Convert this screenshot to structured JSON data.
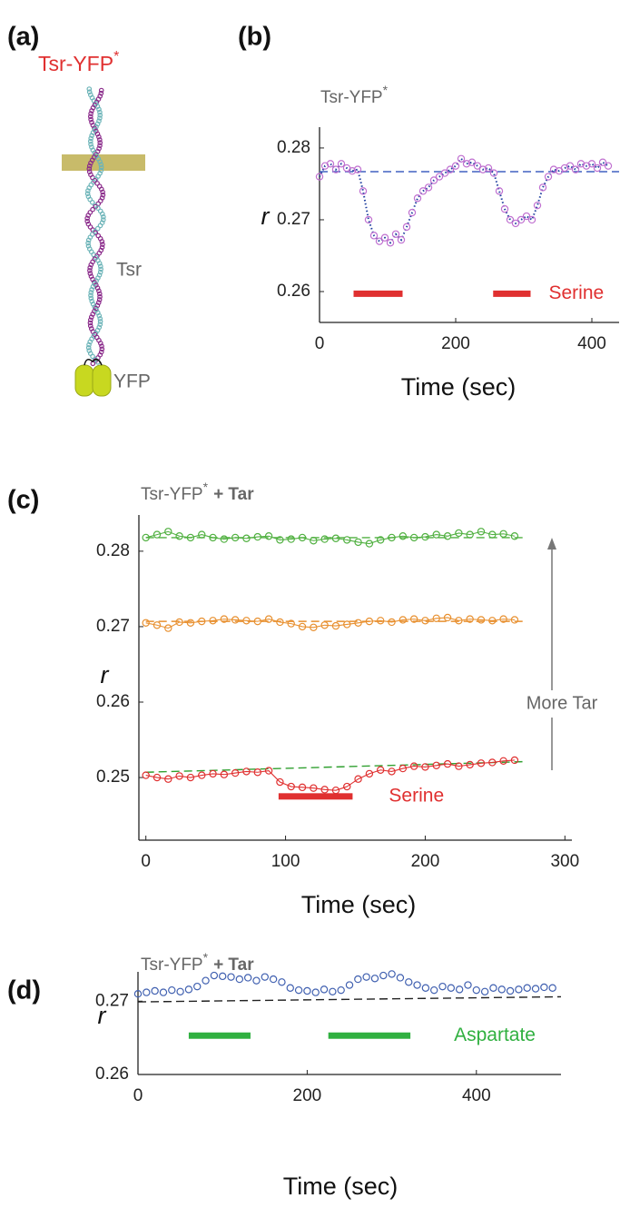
{
  "diagram": {
    "panel_label": "(a)",
    "title": "Tsr-YFP",
    "title_sup": "*",
    "labels": [
      "Tsr",
      "YFP"
    ]
  },
  "chart_data": [
    {
      "type": "scatter",
      "panel_label": "(b)",
      "title": "Tsr-YFP",
      "title_sup": "*",
      "x_label": "Time (sec)",
      "y_label": "r",
      "xlim": [
        0,
        440
      ],
      "ylim": [
        0.2557,
        0.2829
      ],
      "xticks": [
        0,
        200,
        400
      ],
      "yticks": [
        0.26,
        0.27,
        0.28
      ],
      "x": [
        0,
        8,
        16,
        24,
        32,
        40,
        48,
        56,
        64,
        72,
        80,
        88,
        96,
        104,
        112,
        120,
        128,
        136,
        144,
        152,
        160,
        168,
        176,
        184,
        192,
        200,
        208,
        216,
        224,
        232,
        240,
        248,
        256,
        264,
        272,
        280,
        288,
        296,
        304,
        312,
        320,
        328,
        336,
        344,
        352,
        360,
        368,
        376,
        384,
        392,
        400,
        408,
        416,
        424
      ],
      "series": [
        {
          "color": "#c070d0",
          "line_color": "#2040a0",
          "line_style": "dotted",
          "values": [
            0.276,
            0.2775,
            0.2778,
            0.277,
            0.2778,
            0.2772,
            0.2768,
            0.277,
            0.274,
            0.27,
            0.2678,
            0.267,
            0.2675,
            0.2668,
            0.268,
            0.2672,
            0.269,
            0.271,
            0.273,
            0.274,
            0.2745,
            0.2755,
            0.276,
            0.2765,
            0.277,
            0.2775,
            0.2785,
            0.2778,
            0.278,
            0.2775,
            0.277,
            0.2772,
            0.2765,
            0.274,
            0.2715,
            0.27,
            0.2695,
            0.27,
            0.2705,
            0.27,
            0.272,
            0.2745,
            0.276,
            0.277,
            0.2768,
            0.2772,
            0.2775,
            0.277,
            0.2778,
            0.2775,
            0.2778,
            0.2772,
            0.278,
            0.2775
          ],
          "baseline": [
            0.2767,
            0.2767
          ],
          "baseline_color": "#4060c0"
        }
      ],
      "baseline_x": [
        0,
        440
      ],
      "stimuli": [
        {
          "x": [
            50,
            122
          ],
          "y": 0.2597
        },
        {
          "x": [
            255,
            310
          ],
          "y": 0.2597
        }
      ],
      "stimulus_label": "Serine",
      "stimulus_color": "#e03030"
    },
    {
      "type": "scatter",
      "panel_label": "(c)",
      "title": "Tsr-YFP",
      "title_sup": "*",
      "title_suffix": "+ Tar",
      "x_label": "Time (sec)",
      "y_label": "r",
      "xlim": [
        -5,
        305
      ],
      "ylim": [
        0.2417,
        0.2848
      ],
      "xticks": [
        0,
        100,
        200,
        300
      ],
      "yticks": [
        0.25,
        0.26,
        0.27,
        0.28
      ],
      "x": [
        0,
        8,
        16,
        24,
        32,
        40,
        48,
        56,
        64,
        72,
        80,
        88,
        96,
        104,
        112,
        120,
        128,
        136,
        144,
        152,
        160,
        168,
        176,
        184,
        192,
        200,
        208,
        216,
        224,
        232,
        240,
        248,
        256,
        264
      ],
      "series": [
        {
          "color": "#50b040",
          "line_color": "#50b040",
          "line_style": "solid",
          "values": [
            0.2818,
            0.2822,
            0.2826,
            0.282,
            0.2818,
            0.2822,
            0.2818,
            0.2816,
            0.2818,
            0.2817,
            0.2819,
            0.282,
            0.2815,
            0.2816,
            0.2818,
            0.2814,
            0.2816,
            0.2817,
            0.2815,
            0.2812,
            0.281,
            0.2815,
            0.2818,
            0.282,
            0.2818,
            0.2819,
            0.2822,
            0.282,
            0.2824,
            0.2822,
            0.2826,
            0.2822,
            0.2823,
            0.282
          ],
          "baseline": [
            0.2818,
            0.2818
          ],
          "baseline_color": "#50b040"
        },
        {
          "color": "#e89030",
          "line_color": "#e89030",
          "line_style": "solid",
          "values": [
            0.2705,
            0.2702,
            0.2698,
            0.2706,
            0.2705,
            0.2707,
            0.2708,
            0.271,
            0.2709,
            0.2708,
            0.2707,
            0.271,
            0.2706,
            0.2704,
            0.27,
            0.2699,
            0.2702,
            0.2701,
            0.2703,
            0.2705,
            0.2707,
            0.2708,
            0.2706,
            0.2709,
            0.271,
            0.2708,
            0.2711,
            0.2712,
            0.2708,
            0.271,
            0.2709,
            0.2708,
            0.271,
            0.2709
          ],
          "baseline": [
            0.2707,
            0.2707
          ],
          "baseline_color": "#e89030"
        },
        {
          "color": "#e03030",
          "line_color": "#e03030",
          "line_style": "solid",
          "values": [
            0.2503,
            0.25,
            0.2498,
            0.2502,
            0.25,
            0.2503,
            0.2505,
            0.2504,
            0.2506,
            0.2508,
            0.2507,
            0.2509,
            0.2494,
            0.2488,
            0.2487,
            0.2486,
            0.2484,
            0.2483,
            0.2488,
            0.2498,
            0.2505,
            0.251,
            0.2508,
            0.2512,
            0.2515,
            0.2514,
            0.2516,
            0.2518,
            0.2515,
            0.2517,
            0.2519,
            0.252,
            0.2522,
            0.2523
          ],
          "baseline": [
            0.2507,
            0.2521
          ],
          "baseline_color": "#30a030"
        }
      ],
      "baseline_x": [
        0,
        270
      ],
      "stimuli": [
        {
          "x": [
            95,
            148
          ],
          "y": 0.2475
        }
      ],
      "stimulus_label": "Serine",
      "stimulus_color": "#e03030",
      "annotation": "More Tar"
    },
    {
      "type": "scatter",
      "panel_label": "(d)",
      "title": "Tsr-YFP",
      "title_sup": "*",
      "title_suffix": "+ Tar",
      "x_label": "Time (sec)",
      "y_label": "r",
      "xlim": [
        0,
        500
      ],
      "ylim": [
        0.26,
        0.274
      ],
      "xticks": [
        0,
        200,
        400
      ],
      "yticks": [
        0.26,
        0.27
      ],
      "x": [
        0,
        10,
        20,
        30,
        40,
        50,
        60,
        70,
        80,
        90,
        100,
        110,
        120,
        130,
        140,
        150,
        160,
        170,
        180,
        190,
        200,
        210,
        220,
        230,
        240,
        250,
        260,
        270,
        280,
        290,
        300,
        310,
        320,
        330,
        340,
        350,
        360,
        370,
        380,
        390,
        400,
        410,
        420,
        430,
        440,
        450,
        460,
        470,
        480,
        490
      ],
      "series": [
        {
          "color": "#4060b0",
          "line_color": null,
          "line_style": "none",
          "values": [
            0.271,
            0.2712,
            0.2714,
            0.2712,
            0.2715,
            0.2713,
            0.2716,
            0.272,
            0.2728,
            0.2735,
            0.2734,
            0.2733,
            0.273,
            0.2732,
            0.2728,
            0.2733,
            0.273,
            0.2726,
            0.2718,
            0.2715,
            0.2714,
            0.2712,
            0.2716,
            0.2713,
            0.2715,
            0.2722,
            0.273,
            0.2733,
            0.2731,
            0.2735,
            0.2737,
            0.2732,
            0.2726,
            0.2722,
            0.2718,
            0.2715,
            0.272,
            0.2718,
            0.2716,
            0.2722,
            0.2715,
            0.2713,
            0.2718,
            0.2716,
            0.2714,
            0.2716,
            0.2718,
            0.2717,
            0.2719,
            0.2718
          ],
          "baseline": [
            0.2699,
            0.2706
          ],
          "baseline_color": "#222222"
        }
      ],
      "baseline_x": [
        0,
        500
      ],
      "stimuli": [
        {
          "x": [
            60,
            133
          ],
          "y": 0.2653
        },
        {
          "x": [
            225,
            322
          ],
          "y": 0.2653
        }
      ],
      "stimulus_label": "Aspartate",
      "stimulus_color": "#30b040"
    }
  ]
}
